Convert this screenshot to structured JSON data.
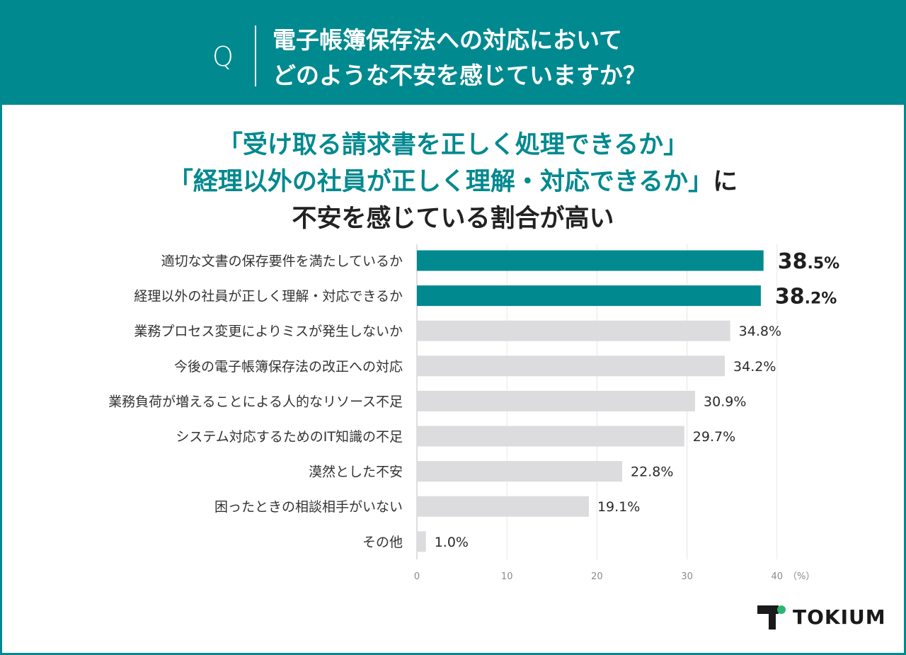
{
  "header": {
    "q_mark": "Q",
    "question_line1": "電子帳簿保存法への対応において",
    "question_line2": "どのような不安を感じていますか？"
  },
  "headline": {
    "line1": "「受け取る請求書を正しく処理できるか」",
    "line2_highlight": "「経理以外の社員が正しく理解・対応できるか」",
    "line2_suffix": "に",
    "line3": "不安を感じている割合が高い"
  },
  "brand": {
    "name": "TOKIUM"
  },
  "colors": {
    "teal": "#00898f",
    "gray_bar": "#dcdbde",
    "grid": "#e6e6e6",
    "logo_dark": "#1a1a1a",
    "logo_green": "#2bb673"
  },
  "chart_data": {
    "type": "bar",
    "orientation": "horizontal",
    "categories": [
      "適切な文書の保存要件を満たしているか",
      "経理以外の社員が正しく理解・対応できるか",
      "業務プロセス変更によりミスが発生しないか",
      "今後の電子帳簿保存法の改正への対応",
      "業務負荷が増えることによる人的なリソース不足",
      "システム対応するためのIT知識の不足",
      "漠然とした不安",
      "困ったときの相談相手がいない",
      "その他"
    ],
    "values": [
      38.5,
      38.2,
      34.8,
      34.2,
      30.9,
      29.7,
      22.8,
      19.1,
      1.0
    ],
    "value_labels": [
      "38.5%",
      "38.2%",
      "34.8%",
      "34.2%",
      "30.9%",
      "29.7%",
      "22.8%",
      "19.1%",
      "1.0%"
    ],
    "highlighted": [
      true,
      true,
      false,
      false,
      false,
      false,
      false,
      false,
      false
    ],
    "xticks": [
      "0",
      "10",
      "20",
      "30",
      "40"
    ],
    "x_unit": "（%）",
    "xlim": [
      0,
      40
    ],
    "grid": true
  }
}
